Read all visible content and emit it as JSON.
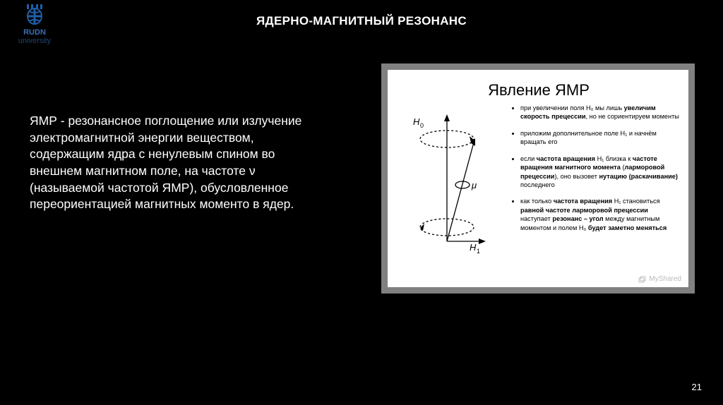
{
  "logo": {
    "primary": "RUDN",
    "secondary": "university",
    "icon_color": "#1f5fa8"
  },
  "title": "ЯДЕРНО-МАГНИТНЫЙ РЕЗОНАНС",
  "body": "ЯМР - резонансное поглощение или излучение электромагнитной энергии веществом, содержащим ядра с ненулевым спином во внешнем магнитном поле, на частоте ν (называемой частотой ЯМР), обусловленное переориентацией магнитных моменто в ядер.",
  "panel": {
    "title": "Явление ЯМР",
    "diagram": {
      "H0_label": "H₀",
      "H1_label": "H₁",
      "mu_label": "μ",
      "stroke": "#000000"
    },
    "bullets": [
      "при увеличении поля H₀ мы лишь <b>увеличим скорость прецессии</b>, но не сориентируем моменты",
      "приложим дополнительное поле H₁ и начнём вращать его",
      "если <b>частота вращения</b> H₁ близка к <b>частоте вращения магнитного момента</b> (<b>ларморовой прецессии</b>), оно вызовет <b>нутацию (раскачивание)</b> последнего",
      "как только <b>частота вращения</b> H₁ становиться <b>равной частоте ларморовой прецессии</b> наступает <b>резонанс – угол</b> между магнитным моментом и полем H₀ <b>будет заметно меняться</b>"
    ],
    "watermark": "MyShared"
  },
  "page_number": "21",
  "colors": {
    "background": "#000000",
    "text": "#ffffff",
    "panel_background": "#ffffff",
    "panel_border": "#808080",
    "watermark": "#bbbbbb"
  }
}
